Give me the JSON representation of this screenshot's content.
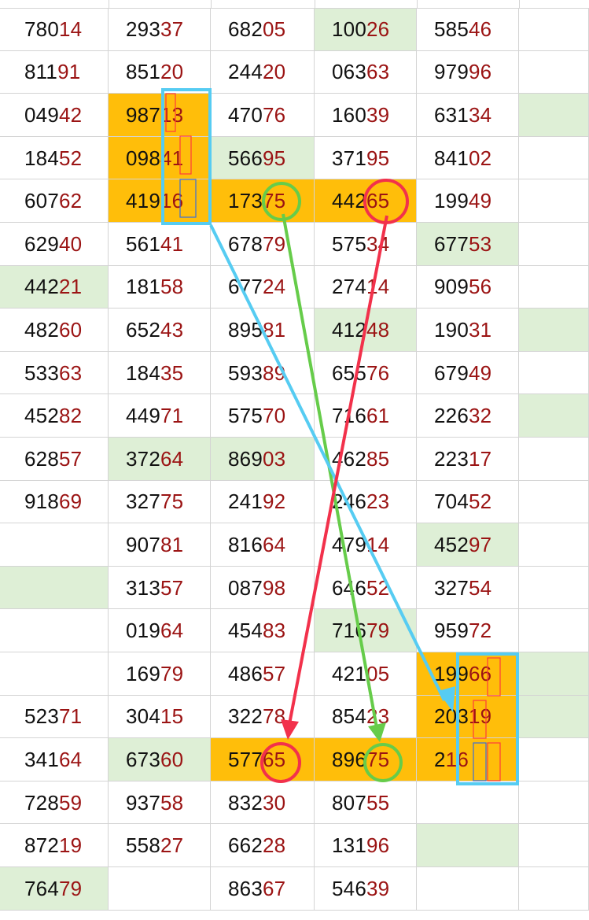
{
  "columns": [
    {
      "cells": [
        {
          "head": "780",
          "tail": "14",
          "fill": ""
        },
        {
          "head": "811",
          "tail": "91",
          "fill": ""
        },
        {
          "head": "049",
          "tail": "42",
          "fill": ""
        },
        {
          "head": "184",
          "tail": "52",
          "fill": ""
        },
        {
          "head": "607",
          "tail": "62",
          "fill": ""
        },
        {
          "head": "629",
          "tail": "40",
          "fill": ""
        },
        {
          "head": "442",
          "tail": "21",
          "fill": "green"
        },
        {
          "head": "482",
          "tail": "60",
          "fill": ""
        },
        {
          "head": "533",
          "tail": "63",
          "fill": ""
        },
        {
          "head": "452",
          "tail": "82",
          "fill": ""
        },
        {
          "head": "628",
          "tail": "57",
          "fill": ""
        },
        {
          "head": "918",
          "tail": "69",
          "fill": ""
        },
        {
          "head": "",
          "tail": "",
          "fill": ""
        },
        {
          "head": "",
          "tail": "",
          "fill": "green"
        },
        {
          "head": "",
          "tail": "",
          "fill": ""
        },
        {
          "head": "",
          "tail": "",
          "fill": ""
        },
        {
          "head": "523",
          "tail": "71",
          "fill": ""
        },
        {
          "head": "341",
          "tail": "64",
          "fill": ""
        },
        {
          "head": "728",
          "tail": "59",
          "fill": ""
        },
        {
          "head": "872",
          "tail": "19",
          "fill": ""
        },
        {
          "head": "764",
          "tail": "79",
          "fill": "green"
        }
      ]
    },
    {
      "cells": [
        {
          "head": "293",
          "tail": "37",
          "fill": ""
        },
        {
          "head": "851",
          "tail": "20",
          "fill": ""
        },
        {
          "head": "987",
          "tail": "13",
          "fill": "orange"
        },
        {
          "head": "098",
          "tail": "41",
          "fill": "orange"
        },
        {
          "head": "419",
          "tail": "16",
          "fill": "orange"
        },
        {
          "head": "561",
          "tail": "41",
          "fill": ""
        },
        {
          "head": "181",
          "tail": "58",
          "fill": ""
        },
        {
          "head": "652",
          "tail": "43",
          "fill": ""
        },
        {
          "head": "184",
          "tail": "35",
          "fill": ""
        },
        {
          "head": "449",
          "tail": "71",
          "fill": ""
        },
        {
          "head": "372",
          "tail": "64",
          "fill": "green"
        },
        {
          "head": "327",
          "tail": "75",
          "fill": ""
        },
        {
          "head": "907",
          "tail": "81",
          "fill": ""
        },
        {
          "head": "313",
          "tail": "57",
          "fill": ""
        },
        {
          "head": "019",
          "tail": "64",
          "fill": ""
        },
        {
          "head": "169",
          "tail": "79",
          "fill": ""
        },
        {
          "head": "304",
          "tail": "15",
          "fill": ""
        },
        {
          "head": "673",
          "tail": "60",
          "fill": "green"
        },
        {
          "head": "937",
          "tail": "58",
          "fill": ""
        },
        {
          "head": "558",
          "tail": "27",
          "fill": ""
        },
        {
          "head": "",
          "tail": "",
          "fill": ""
        }
      ]
    },
    {
      "cells": [
        {
          "head": "682",
          "tail": "05",
          "fill": ""
        },
        {
          "head": "244",
          "tail": "20",
          "fill": ""
        },
        {
          "head": "470",
          "tail": "76",
          "fill": ""
        },
        {
          "head": "566",
          "tail": "95",
          "fill": "green"
        },
        {
          "head": "173",
          "tail": "75",
          "fill": "orange"
        },
        {
          "head": "678",
          "tail": "79",
          "fill": ""
        },
        {
          "head": "677",
          "tail": "24",
          "fill": ""
        },
        {
          "head": "895",
          "tail": "81",
          "fill": ""
        },
        {
          "head": "593",
          "tail": "89",
          "fill": ""
        },
        {
          "head": "575",
          "tail": "70",
          "fill": ""
        },
        {
          "head": "869",
          "tail": "03",
          "fill": "green"
        },
        {
          "head": "241",
          "tail": "92",
          "fill": ""
        },
        {
          "head": "816",
          "tail": "64",
          "fill": ""
        },
        {
          "head": "087",
          "tail": "98",
          "fill": ""
        },
        {
          "head": "454",
          "tail": "83",
          "fill": ""
        },
        {
          "head": "486",
          "tail": "57",
          "fill": ""
        },
        {
          "head": "322",
          "tail": "78",
          "fill": ""
        },
        {
          "head": "577",
          "tail": "65",
          "fill": "orange"
        },
        {
          "head": "832",
          "tail": "30",
          "fill": ""
        },
        {
          "head": "662",
          "tail": "28",
          "fill": ""
        },
        {
          "head": "863",
          "tail": "67",
          "fill": ""
        }
      ]
    },
    {
      "cells": [
        {
          "head": "100",
          "tail": "26",
          "fill": "green"
        },
        {
          "head": "063",
          "tail": "63",
          "fill": ""
        },
        {
          "head": "160",
          "tail": "39",
          "fill": ""
        },
        {
          "head": "371",
          "tail": "95",
          "fill": ""
        },
        {
          "head": "442",
          "tail": "65",
          "fill": "orange"
        },
        {
          "head": "575",
          "tail": "34",
          "fill": ""
        },
        {
          "head": "274",
          "tail": "14",
          "fill": ""
        },
        {
          "head": "412",
          "tail": "48",
          "fill": "green"
        },
        {
          "head": "655",
          "tail": "76",
          "fill": ""
        },
        {
          "head": "716",
          "tail": "61",
          "fill": ""
        },
        {
          "head": "462",
          "tail": "85",
          "fill": ""
        },
        {
          "head": "246",
          "tail": "23",
          "fill": ""
        },
        {
          "head": "479",
          "tail": "14",
          "fill": ""
        },
        {
          "head": "646",
          "tail": "52",
          "fill": ""
        },
        {
          "head": "716",
          "tail": "79",
          "fill": "green"
        },
        {
          "head": "421",
          "tail": "05",
          "fill": ""
        },
        {
          "head": "854",
          "tail": "23",
          "fill": ""
        },
        {
          "head": "896",
          "tail": "75",
          "fill": "orange"
        },
        {
          "head": "807",
          "tail": "55",
          "fill": ""
        },
        {
          "head": "131",
          "tail": "96",
          "fill": ""
        },
        {
          "head": "546",
          "tail": "39",
          "fill": ""
        }
      ]
    },
    {
      "cells": [
        {
          "head": "585",
          "tail": "46",
          "fill": ""
        },
        {
          "head": "979",
          "tail": "96",
          "fill": ""
        },
        {
          "head": "631",
          "tail": "34",
          "fill": ""
        },
        {
          "head": "841",
          "tail": "02",
          "fill": ""
        },
        {
          "head": "199",
          "tail": "49",
          "fill": ""
        },
        {
          "head": "677",
          "tail": "53",
          "fill": "green"
        },
        {
          "head": "909",
          "tail": "56",
          "fill": ""
        },
        {
          "head": "190",
          "tail": "31",
          "fill": ""
        },
        {
          "head": "679",
          "tail": "49",
          "fill": ""
        },
        {
          "head": "226",
          "tail": "32",
          "fill": ""
        },
        {
          "head": "223",
          "tail": "17",
          "fill": ""
        },
        {
          "head": "704",
          "tail": "52",
          "fill": ""
        },
        {
          "head": "452",
          "tail": "97",
          "fill": "green"
        },
        {
          "head": "327",
          "tail": "54",
          "fill": ""
        },
        {
          "head": "959",
          "tail": "72",
          "fill": ""
        },
        {
          "head": "199",
          "tail": "66",
          "fill": "orange"
        },
        {
          "head": "203",
          "tail": "19",
          "fill": "orange"
        },
        {
          "head": "2",
          "tail": "16",
          "fill": "orange"
        },
        {
          "head": "",
          "tail": "",
          "fill": ""
        },
        {
          "head": "",
          "tail": "",
          "fill": "green"
        },
        {
          "head": "",
          "tail": "",
          "fill": ""
        }
      ]
    },
    {
      "cells": [
        {
          "head": "",
          "tail": "",
          "fill": ""
        },
        {
          "head": "",
          "tail": "",
          "fill": ""
        },
        {
          "head": "",
          "tail": "",
          "fill": "green"
        },
        {
          "head": "",
          "tail": "",
          "fill": ""
        },
        {
          "head": "",
          "tail": "",
          "fill": ""
        },
        {
          "head": "",
          "tail": "",
          "fill": ""
        },
        {
          "head": "",
          "tail": "",
          "fill": ""
        },
        {
          "head": "",
          "tail": "",
          "fill": "green"
        },
        {
          "head": "",
          "tail": "",
          "fill": ""
        },
        {
          "head": "",
          "tail": "",
          "fill": "green"
        },
        {
          "head": "",
          "tail": "",
          "fill": ""
        },
        {
          "head": "",
          "tail": "",
          "fill": ""
        },
        {
          "head": "",
          "tail": "",
          "fill": ""
        },
        {
          "head": "",
          "tail": "",
          "fill": ""
        },
        {
          "head": "",
          "tail": "",
          "fill": ""
        },
        {
          "head": "",
          "tail": "",
          "fill": "green"
        },
        {
          "head": "",
          "tail": "",
          "fill": "green"
        },
        {
          "head": "",
          "tail": "",
          "fill": ""
        },
        {
          "head": "",
          "tail": "",
          "fill": ""
        },
        {
          "head": "",
          "tail": "",
          "fill": ""
        },
        {
          "head": "",
          "tail": "",
          "fill": ""
        }
      ]
    }
  ],
  "colors": {
    "green_fill": "#deefd6",
    "orange_fill": "#ffbe0a",
    "digit_dark": "#111111",
    "digit_red": "#9b1414",
    "cyan_mark": "#56ccf2",
    "red_mark": "#f2314b",
    "green_mark": "#66cc4a",
    "small_box_red": "#ff3b3b",
    "small_box_blue": "#3a6fd8"
  }
}
